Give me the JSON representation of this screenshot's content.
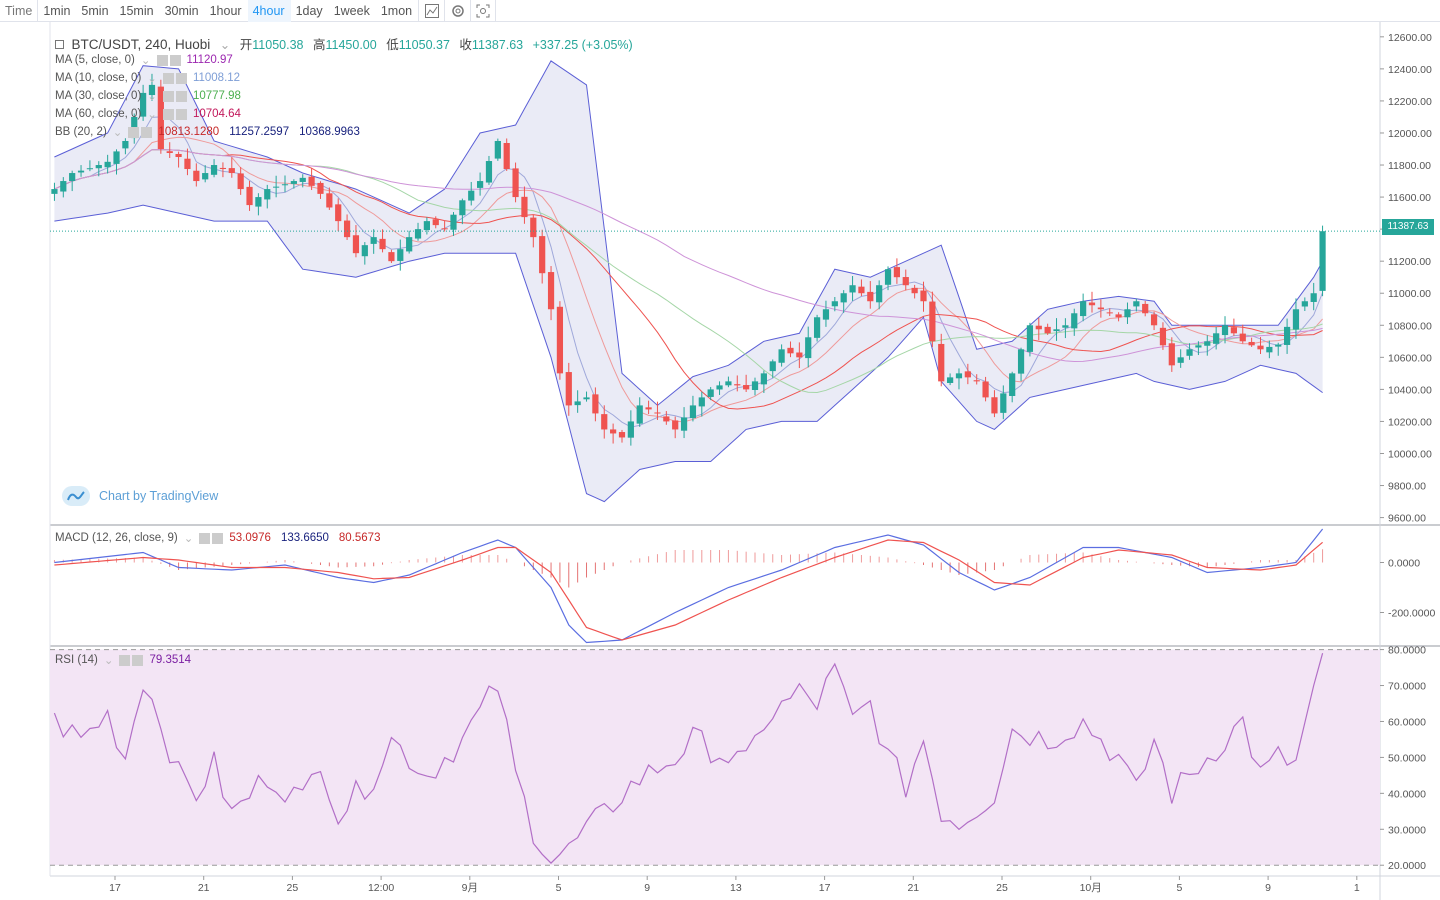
{
  "toolbar": {
    "timeframes": [
      "Time",
      "1min",
      "5min",
      "15min",
      "30min",
      "1hour",
      "4hour",
      "1day",
      "1week",
      "1mon"
    ],
    "active_timeframe": "4hour",
    "icons": [
      "indicators-icon",
      "settings-icon",
      "screenshot-icon"
    ]
  },
  "sidebar": {
    "tools": [
      "crosshair-icon",
      "trendline-icon",
      "horizontal-lines-icon",
      "brush-icon",
      "text-icon",
      "pattern-icon",
      "fib-icon",
      "back-icon",
      "ruler-icon",
      "zoom-in-icon",
      "magnet-icon",
      "lock-drawing-icon",
      "unlock-icon",
      "eye-icon",
      "layers-icon",
      "trash-icon"
    ]
  },
  "header": {
    "symbol": "BTC/USDT, 240, Huobi",
    "open_label": "开",
    "open": "11050.38",
    "high_label": "高",
    "high": "11450.00",
    "low_label": "低",
    "low": "11050.37",
    "close_label": "收",
    "close": "11387.63",
    "change": "+337.25 (+3.05%)"
  },
  "indicators": {
    "ma5": {
      "label": "MA (5, close, 0)",
      "value": "11120.97",
      "color": "#9c27b0"
    },
    "ma10": {
      "label": "MA (10, close, 0)",
      "value": "11008.12",
      "color": "#7e9ed6"
    },
    "ma30": {
      "label": "MA (30, close, 0)",
      "value": "10777.98",
      "color": "#4caf50"
    },
    "ma60": {
      "label": "MA (60, close, 0)",
      "value": "10704.64",
      "color": "#c2185b"
    },
    "bb": {
      "label": "BB (20, 2)",
      "basis": "10813.1280",
      "upper": "11257.2597",
      "lower": "10368.9963"
    },
    "macd": {
      "label": "MACD (12, 26, close, 9)",
      "hist": "53.0976",
      "macd": "133.6650",
      "signal": "80.5673"
    },
    "rsi": {
      "label": "RSI (14)",
      "value": "79.3514"
    }
  },
  "watermark": "Chart by TradingView",
  "last_price": "11387.63",
  "colors": {
    "up": "#26a69a",
    "down": "#ef5350",
    "bb_fill": "#e6e7f5",
    "bb_line": "#5b5fd6",
    "rsi_fill": "#f3e5f5",
    "rsi_line": "#b26fc7",
    "accent": "#2196f3"
  },
  "chart_data": [
    {
      "type": "candlestick",
      "title": "BTC/USDT, 240, Huobi",
      "y_axis_ticks": [
        12600,
        12400,
        12200,
        12000,
        11800,
        11600,
        11400,
        11200,
        11000,
        10800,
        10600,
        10400,
        10200,
        10000,
        9800,
        9600
      ],
      "ylim": [
        9560,
        12680
      ],
      "x_tick_labels": [
        "17",
        "21",
        "25",
        "12:00",
        "9月",
        "5",
        "9",
        "13",
        "17",
        "21",
        "25",
        "10月",
        "5",
        "9",
        "1"
      ],
      "price_path": [
        [
          0,
          11650
        ],
        [
          2,
          11750
        ],
        [
          4,
          11780
        ],
        [
          6,
          11820
        ],
        [
          8,
          11950
        ],
        [
          10,
          12250
        ],
        [
          11,
          12300
        ],
        [
          12,
          11900
        ],
        [
          14,
          11850
        ],
        [
          16,
          11700
        ],
        [
          18,
          11800
        ],
        [
          20,
          11750
        ],
        [
          22,
          11550
        ],
        [
          24,
          11650
        ],
        [
          26,
          11680
        ],
        [
          28,
          11720
        ],
        [
          30,
          11620
        ],
        [
          32,
          11450
        ],
        [
          34,
          11250
        ],
        [
          36,
          11350
        ],
        [
          38,
          11200
        ],
        [
          40,
          11350
        ],
        [
          42,
          11450
        ],
        [
          44,
          11400
        ],
        [
          46,
          11580
        ],
        [
          48,
          11700
        ],
        [
          50,
          11950
        ],
        [
          52,
          11600
        ],
        [
          54,
          11350
        ],
        [
          56,
          10900
        ],
        [
          57,
          10500
        ],
        [
          58,
          10300
        ],
        [
          60,
          10350
        ],
        [
          62,
          10150
        ],
        [
          64,
          10100
        ],
        [
          66,
          10300
        ],
        [
          68,
          10250
        ],
        [
          70,
          10150
        ],
        [
          72,
          10300
        ],
        [
          74,
          10400
        ],
        [
          76,
          10450
        ],
        [
          78,
          10400
        ],
        [
          80,
          10500
        ],
        [
          82,
          10650
        ],
        [
          84,
          10600
        ],
        [
          86,
          10850
        ],
        [
          88,
          10950
        ],
        [
          90,
          11050
        ],
        [
          92,
          10950
        ],
        [
          94,
          11150
        ],
        [
          96,
          11050
        ],
        [
          98,
          10950
        ],
        [
          100,
          10450
        ],
        [
          102,
          10500
        ],
        [
          104,
          10450
        ],
        [
          106,
          10250
        ],
        [
          108,
          10500
        ],
        [
          110,
          10800
        ],
        [
          112,
          10750
        ],
        [
          114,
          10800
        ],
        [
          116,
          10950
        ],
        [
          118,
          10900
        ],
        [
          120,
          10850
        ],
        [
          122,
          10950
        ],
        [
          124,
          10800
        ],
        [
          126,
          10550
        ],
        [
          128,
          10650
        ],
        [
          130,
          10700
        ],
        [
          132,
          10800
        ],
        [
          134,
          10700
        ],
        [
          136,
          10650
        ],
        [
          138,
          10680
        ],
        [
          140,
          10900
        ],
        [
          142,
          11000
        ],
        [
          143,
          11387
        ]
      ],
      "bb_upper_path": [
        [
          0,
          11850
        ],
        [
          6,
          12000
        ],
        [
          10,
          12420
        ],
        [
          14,
          12400
        ],
        [
          18,
          11950
        ],
        [
          24,
          11850
        ],
        [
          28,
          11750
        ],
        [
          34,
          11650
        ],
        [
          40,
          11500
        ],
        [
          44,
          11650
        ],
        [
          48,
          12000
        ],
        [
          52,
          12050
        ],
        [
          56,
          12450
        ],
        [
          60,
          12300
        ],
        [
          64,
          10500
        ],
        [
          68,
          10300
        ],
        [
          72,
          10480
        ],
        [
          76,
          10550
        ],
        [
          80,
          10700
        ],
        [
          84,
          10750
        ],
        [
          88,
          11150
        ],
        [
          92,
          11100
        ],
        [
          96,
          11200
        ],
        [
          100,
          11300
        ],
        [
          104,
          10650
        ],
        [
          108,
          10700
        ],
        [
          112,
          10900
        ],
        [
          116,
          10950
        ],
        [
          120,
          10980
        ],
        [
          124,
          10950
        ],
        [
          126,
          10800
        ],
        [
          130,
          10800
        ],
        [
          134,
          10800
        ],
        [
          138,
          10800
        ],
        [
          142,
          11100
        ],
        [
          143,
          11200
        ]
      ],
      "bb_lower_path": [
        [
          0,
          11450
        ],
        [
          6,
          11500
        ],
        [
          10,
          11550
        ],
        [
          14,
          11500
        ],
        [
          18,
          11450
        ],
        [
          24,
          11450
        ],
        [
          28,
          11150
        ],
        [
          34,
          11100
        ],
        [
          40,
          11200
        ],
        [
          44,
          11250
        ],
        [
          48,
          11250
        ],
        [
          52,
          11250
        ],
        [
          56,
          10600
        ],
        [
          60,
          9750
        ],
        [
          62,
          9700
        ],
        [
          66,
          9900
        ],
        [
          70,
          9950
        ],
        [
          74,
          9950
        ],
        [
          78,
          10150
        ],
        [
          82,
          10200
        ],
        [
          86,
          10200
        ],
        [
          90,
          10400
        ],
        [
          94,
          10600
        ],
        [
          98,
          10850
        ],
        [
          100,
          10450
        ],
        [
          104,
          10200
        ],
        [
          106,
          10150
        ],
        [
          110,
          10350
        ],
        [
          114,
          10400
        ],
        [
          118,
          10450
        ],
        [
          122,
          10500
        ],
        [
          124,
          10450
        ],
        [
          128,
          10400
        ],
        [
          132,
          10450
        ],
        [
          136,
          10550
        ],
        [
          140,
          10500
        ],
        [
          143,
          10380
        ]
      ]
    },
    {
      "type": "line",
      "title": "MACD (12, 26, close, 9)",
      "y_axis_ticks": [
        0,
        -200
      ],
      "ylim": [
        -330,
        150
      ],
      "macd_path": [
        [
          0,
          0
        ],
        [
          10,
          40
        ],
        [
          14,
          -20
        ],
        [
          20,
          -30
        ],
        [
          26,
          -10
        ],
        [
          32,
          -60
        ],
        [
          36,
          -80
        ],
        [
          40,
          -50
        ],
        [
          46,
          40
        ],
        [
          50,
          90
        ],
        [
          52,
          60
        ],
        [
          56,
          -100
        ],
        [
          58,
          -250
        ],
        [
          60,
          -320
        ],
        [
          64,
          -310
        ],
        [
          70,
          -200
        ],
        [
          76,
          -100
        ],
        [
          82,
          -30
        ],
        [
          88,
          60
        ],
        [
          94,
          110
        ],
        [
          98,
          70
        ],
        [
          102,
          -40
        ],
        [
          106,
          -110
        ],
        [
          110,
          -60
        ],
        [
          116,
          60
        ],
        [
          120,
          60
        ],
        [
          126,
          20
        ],
        [
          130,
          -40
        ],
        [
          136,
          -20
        ],
        [
          140,
          0
        ],
        [
          143,
          134
        ]
      ],
      "signal_path": [
        [
          0,
          -10
        ],
        [
          10,
          20
        ],
        [
          14,
          10
        ],
        [
          20,
          -20
        ],
        [
          26,
          -20
        ],
        [
          32,
          -40
        ],
        [
          36,
          -65
        ],
        [
          40,
          -60
        ],
        [
          46,
          10
        ],
        [
          50,
          60
        ],
        [
          52,
          60
        ],
        [
          56,
          -40
        ],
        [
          58,
          -150
        ],
        [
          60,
          -260
        ],
        [
          64,
          -310
        ],
        [
          70,
          -250
        ],
        [
          76,
          -150
        ],
        [
          82,
          -60
        ],
        [
          88,
          20
        ],
        [
          94,
          90
        ],
        [
          98,
          80
        ],
        [
          102,
          10
        ],
        [
          106,
          -80
        ],
        [
          110,
          -90
        ],
        [
          116,
          20
        ],
        [
          120,
          50
        ],
        [
          126,
          30
        ],
        [
          130,
          -20
        ],
        [
          136,
          -30
        ],
        [
          140,
          -10
        ],
        [
          143,
          81
        ]
      ]
    },
    {
      "type": "line",
      "title": "RSI (14)",
      "y_axis_ticks": [
        80,
        70,
        60,
        50,
        40,
        30,
        20
      ],
      "ylim": [
        17,
        81
      ],
      "levels": [
        80,
        20
      ],
      "rsi_path": [
        [
          0,
          60
        ],
        [
          3,
          55
        ],
        [
          6,
          62
        ],
        [
          8,
          50
        ],
        [
          10,
          72
        ],
        [
          12,
          60
        ],
        [
          14,
          45
        ],
        [
          16,
          40
        ],
        [
          18,
          48
        ],
        [
          20,
          34
        ],
        [
          24,
          45
        ],
        [
          28,
          38
        ],
        [
          30,
          50
        ],
        [
          32,
          34
        ],
        [
          36,
          45
        ],
        [
          38,
          55
        ],
        [
          42,
          45
        ],
        [
          46,
          55
        ],
        [
          50,
          70
        ],
        [
          52,
          45
        ],
        [
          54,
          30
        ],
        [
          56,
          22
        ],
        [
          58,
          24
        ],
        [
          60,
          30
        ],
        [
          62,
          34
        ],
        [
          64,
          40
        ],
        [
          66,
          44
        ],
        [
          70,
          50
        ],
        [
          72,
          55
        ],
        [
          76,
          50
        ],
        [
          78,
          48
        ],
        [
          80,
          60
        ],
        [
          84,
          68
        ],
        [
          86,
          65
        ],
        [
          88,
          74
        ],
        [
          90,
          60
        ],
        [
          92,
          65
        ],
        [
          94,
          50
        ],
        [
          96,
          42
        ],
        [
          98,
          55
        ],
        [
          100,
          35
        ],
        [
          102,
          32
        ],
        [
          104,
          36
        ],
        [
          106,
          40
        ],
        [
          108,
          58
        ],
        [
          112,
          55
        ],
        [
          116,
          60
        ],
        [
          118,
          55
        ],
        [
          120,
          50
        ],
        [
          122,
          40
        ],
        [
          124,
          55
        ],
        [
          126,
          40
        ],
        [
          128,
          45
        ],
        [
          130,
          50
        ],
        [
          132,
          55
        ],
        [
          134,
          60
        ],
        [
          136,
          45
        ],
        [
          138,
          50
        ],
        [
          140,
          48
        ],
        [
          142,
          70
        ],
        [
          143,
          79
        ]
      ]
    }
  ]
}
